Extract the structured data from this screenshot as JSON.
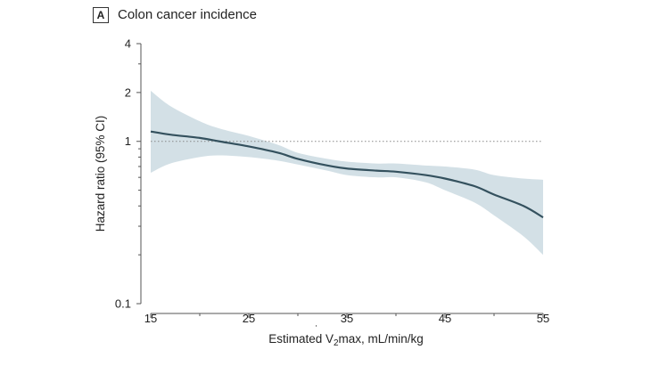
{
  "panel": {
    "letter": "A",
    "title": "Colon cancer incidence"
  },
  "chart_data": {
    "type": "line",
    "title": "Colon cancer incidence",
    "xlabel_prefix": "Estimated V",
    "xlabel_dot": "˙",
    "xlabel_sub": "2",
    "xlabel_suffix": "max, mL/min/kg",
    "ylabel": "Hazard ratio (95% CI)",
    "yscale": "log",
    "xlim": [
      15,
      55
    ],
    "ylim": [
      0.1,
      4
    ],
    "xticks": [
      15,
      25,
      35,
      45,
      55
    ],
    "yticks": [
      0.1,
      1,
      2,
      4
    ],
    "ytick_labels": [
      "0.1",
      "1",
      "2",
      "4"
    ],
    "reference_line": {
      "y": 1,
      "style": "dotted"
    },
    "series": [
      {
        "x": [
          15,
          17,
          20,
          22,
          25,
          28,
          30,
          33,
          35,
          38,
          40,
          43,
          45,
          48,
          50,
          53,
          55
        ],
        "y": [
          1.15,
          1.1,
          1.05,
          1.0,
          0.93,
          0.85,
          0.78,
          0.71,
          0.68,
          0.66,
          0.65,
          0.62,
          0.59,
          0.53,
          0.47,
          0.4,
          0.34
        ],
        "lower": [
          0.64,
          0.73,
          0.8,
          0.82,
          0.8,
          0.76,
          0.72,
          0.66,
          0.62,
          0.6,
          0.6,
          0.56,
          0.5,
          0.42,
          0.35,
          0.26,
          0.2
        ],
        "upper": [
          2.05,
          1.65,
          1.33,
          1.2,
          1.08,
          0.95,
          0.85,
          0.78,
          0.75,
          0.73,
          0.73,
          0.71,
          0.7,
          0.67,
          0.62,
          0.59,
          0.58
        ]
      }
    ],
    "colors": {
      "line": "#34515e",
      "band": "#d3e0e6",
      "axis": "#555555",
      "reference": "#888888"
    }
  }
}
